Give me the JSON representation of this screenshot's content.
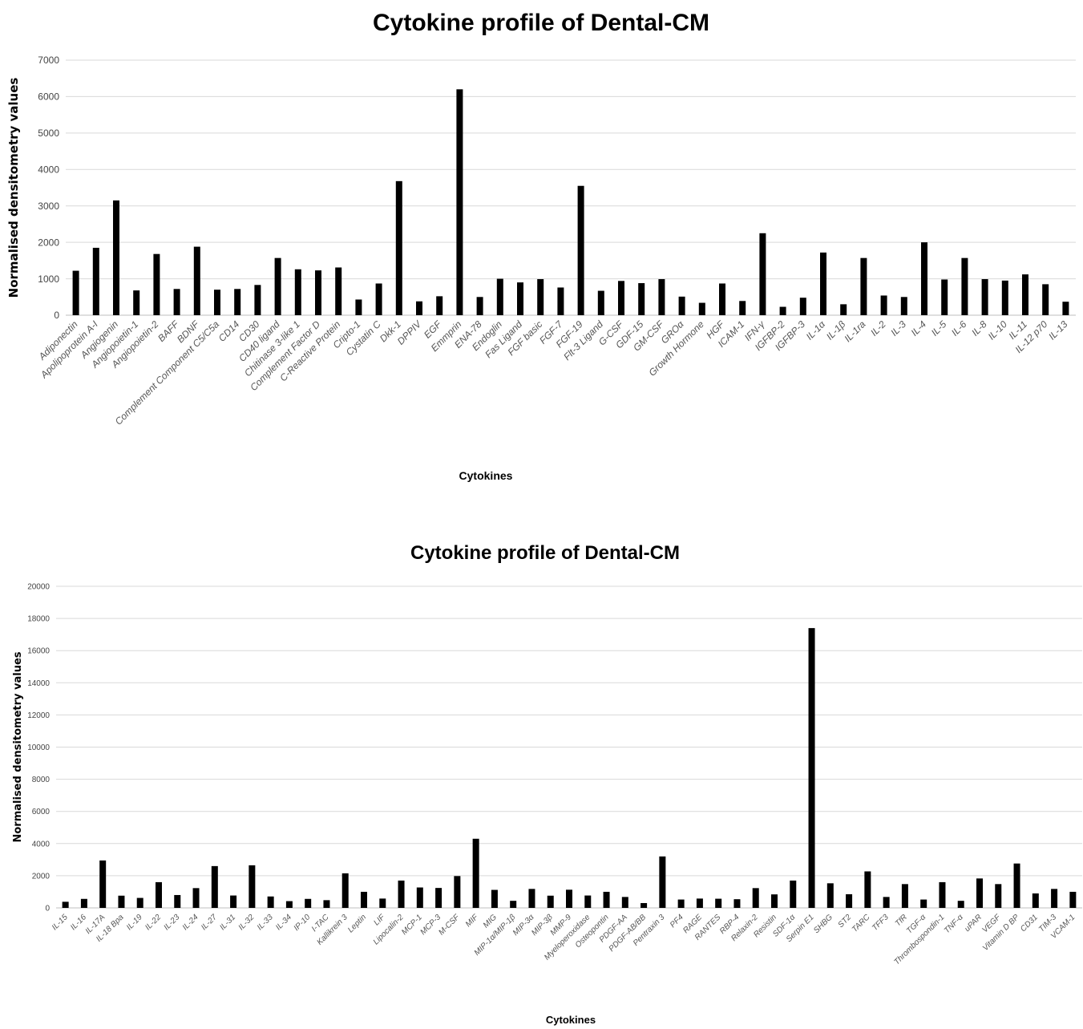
{
  "chart_data": [
    {
      "type": "bar",
      "title": "Cytokine profile of Dental-CM",
      "xlabel": "Cytokines",
      "ylabel": "Normalised densitometry values",
      "ylim": [
        0,
        7000
      ],
      "yticks": [
        0,
        1000,
        2000,
        3000,
        4000,
        5000,
        6000,
        7000
      ],
      "grid": true,
      "categories": [
        "Adiponectin",
        "Apolipoprotein A-I",
        "Angiogenin",
        "Angiopoietin-1",
        "Angiopoietin-2",
        "BAFF",
        "BDNF",
        "Complement Component C5/C5a",
        "CD14",
        "CD30",
        "CD40 ligand",
        "Chitinase 3-like 1",
        "Complement Factor D",
        "C-Reactive Protein",
        "Cripto-1",
        "Cystatin C",
        "Dkk-1",
        "DPPIV",
        "EGF",
        "Emmprin",
        "ENA-78",
        "Endoglin",
        "Fas Ligand",
        "FGF basic",
        "FGF-7",
        "FGF-19",
        "Flt-3 Ligand",
        "G-CSF",
        "GDF-15",
        "GM-CSF",
        "GROα",
        "Growth Hormone",
        "HGF",
        "ICAM-1",
        "IFN-γ",
        "IGFBP-2",
        "IGFBP-3",
        "IL-1α",
        "IL-1β",
        "IL-1ra",
        "IL-2",
        "IL-3",
        "IL-4",
        "IL-5",
        "IL-6",
        "IL-8",
        "IL-10",
        "IL-11",
        "IL-12 p70",
        "IL-13"
      ],
      "values": [
        1220,
        1850,
        3150,
        680,
        1680,
        720,
        1880,
        700,
        720,
        830,
        1570,
        1260,
        1230,
        1310,
        430,
        870,
        3680,
        380,
        520,
        6200,
        500,
        1000,
        900,
        990,
        760,
        3550,
        670,
        940,
        880,
        990,
        510,
        340,
        870,
        390,
        2250,
        230,
        480,
        1720,
        300,
        1570,
        540,
        500,
        2000,
        980,
        1570,
        990,
        950,
        1120,
        850,
        370
      ]
    },
    {
      "type": "bar",
      "title": "Cytokine profile of Dental-CM",
      "xlabel": "Cytokines",
      "ylabel": "Normalised densitometry values",
      "ylim": [
        0,
        20000
      ],
      "yticks": [
        0,
        2000,
        4000,
        6000,
        8000,
        10000,
        12000,
        14000,
        16000,
        18000,
        20000
      ],
      "grid": true,
      "categories": [
        "IL-15",
        "IL-16",
        "IL-17A",
        "IL-18 Bpa",
        "IL-19",
        "IL-22",
        "IL-23",
        "IL-24",
        "IL-27",
        "IL-31",
        "IL-32",
        "IL-33",
        "IL-34",
        "IP-10",
        "I-TAC",
        "Kallikrein 3",
        "Leptin",
        "LIF",
        "Lipocalin-2",
        "MCP-1",
        "MCP-3",
        "M-CSF",
        "MIF",
        "MIG",
        "MIP-1α/MIP-1β",
        "MIP-3α",
        "MIP-3β",
        "MMP-9",
        "Myeloperoxidase",
        "Osteopontin",
        "PDGF-AA",
        "PDGF-AB/BB",
        "Pentraxin 3",
        "PF4",
        "RAGE",
        "RANTES",
        "RBP-4",
        "Relaxin-2",
        "Resistin",
        "SDF-1α",
        "Serpin E1",
        "SHBG",
        "ST2",
        "TARC",
        "TFF3",
        "TfR",
        "TGF-α",
        "Thrombospondin-1",
        "TNF-α",
        "uPAR",
        "VEGF",
        "Vitamin D BP",
        "CD31",
        "TIM-3",
        "VCAM-1"
      ],
      "values": [
        380,
        560,
        2950,
        760,
        620,
        1600,
        800,
        1230,
        2600,
        770,
        2650,
        710,
        420,
        560,
        480,
        2150,
        1000,
        580,
        1700,
        1270,
        1240,
        1980,
        4300,
        1120,
        440,
        1180,
        760,
        1130,
        770,
        1000,
        680,
        300,
        3200,
        520,
        580,
        570,
        540,
        1230,
        840,
        1700,
        17400,
        1530,
        850,
        2270,
        680,
        1480,
        520,
        1600,
        440,
        1830,
        1480,
        2760,
        900,
        1180,
        1000
      ]
    }
  ]
}
